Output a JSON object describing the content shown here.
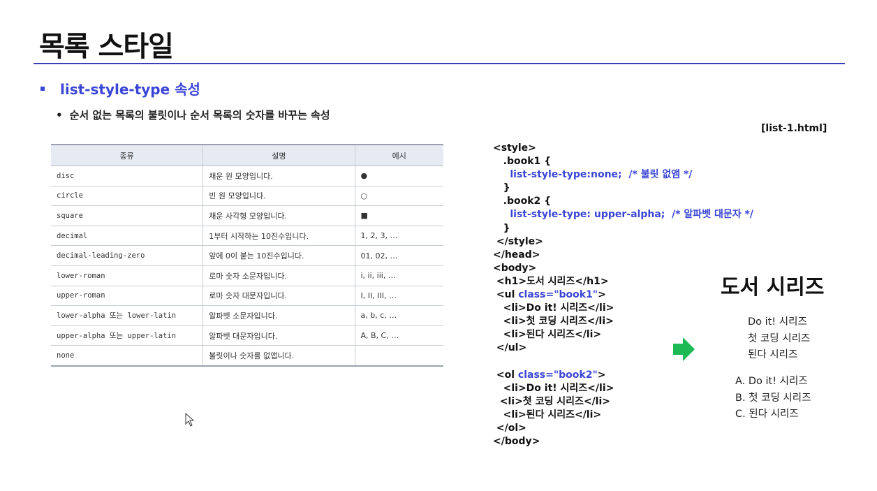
{
  "title": "목록 스타일",
  "heading": "list-style-type 속성",
  "subheading": "순서 없는 목록의 불릿이나 순서 목록의 숫자를 바꾸는 속성",
  "filename": "[list-1.html]",
  "table": {
    "headers": [
      "종류",
      "설명",
      "예시"
    ],
    "rows": [
      {
        "type": "disc",
        "desc": "채운 원 모양입니다.",
        "example": "●"
      },
      {
        "type": "circle",
        "desc": "빈 원 모양입니다.",
        "example": "○"
      },
      {
        "type": "square",
        "desc": "채운 사각형 모양입니다.",
        "example": "■"
      },
      {
        "type": "decimal",
        "desc": "1부터 시작하는 10진수입니다.",
        "example": "1, 2, 3, …"
      },
      {
        "type": "decimal-leading-zero",
        "desc": "앞에 0이 붙는 10진수입니다.",
        "example": "01, 02, …"
      },
      {
        "type": "lower-roman",
        "desc": "로마 숫자 소문자입니다.",
        "example": "i, ii, iii, …"
      },
      {
        "type": "upper-roman",
        "desc": "로마 숫자 대문자입니다.",
        "example": "I, II, III, …"
      },
      {
        "type": "lower-alpha 또는 lower-latin",
        "desc": "알파벳 소문자입니다.",
        "example": "a, b, c, …"
      },
      {
        "type": "upper-alpha 또는 upper-latin",
        "desc": "알파벳 대문자입니다.",
        "example": "A, B, C, …"
      },
      {
        "type": "none",
        "desc": "불릿이나 숫자를 없앱니다.",
        "example": ""
      }
    ]
  },
  "code": [
    {
      "indent": "",
      "parts": [
        {
          "t": "<style>",
          "c": ""
        }
      ]
    },
    {
      "indent": "   ",
      "parts": [
        {
          "t": ".book1 {",
          "c": ""
        }
      ]
    },
    {
      "indent": "     ",
      "parts": [
        {
          "t": "list-style-type:none;  /* 불릿 없앰 */",
          "c": "blue"
        }
      ]
    },
    {
      "indent": "   ",
      "parts": [
        {
          "t": "}",
          "c": ""
        }
      ]
    },
    {
      "indent": "   ",
      "parts": [
        {
          "t": ".book2 {",
          "c": ""
        }
      ]
    },
    {
      "indent": "     ",
      "parts": [
        {
          "t": "list-style-type: upper-alpha;  /* 알파벳 대문자 */",
          "c": "blue"
        }
      ]
    },
    {
      "indent": "   ",
      "parts": [
        {
          "t": "}",
          "c": ""
        }
      ]
    },
    {
      "indent": " ",
      "parts": [
        {
          "t": "</style>",
          "c": ""
        }
      ]
    },
    {
      "indent": "",
      "parts": [
        {
          "t": "</head>",
          "c": ""
        }
      ]
    },
    {
      "indent": "",
      "parts": [
        {
          "t": "<body>",
          "c": ""
        }
      ]
    },
    {
      "indent": " ",
      "parts": [
        {
          "t": "<h1>도서 시리즈</h1>",
          "c": ""
        }
      ]
    },
    {
      "indent": " ",
      "parts": [
        {
          "t": "<ul ",
          "c": ""
        },
        {
          "t": "class=\"book1\"",
          "c": "blue"
        },
        {
          "t": ">",
          "c": ""
        }
      ]
    },
    {
      "indent": "   ",
      "parts": [
        {
          "t": "<li>Do it! 시리즈</li>",
          "c": ""
        }
      ]
    },
    {
      "indent": "   ",
      "parts": [
        {
          "t": "<li>첫 코딩 시리즈</li>",
          "c": ""
        }
      ]
    },
    {
      "indent": "   ",
      "parts": [
        {
          "t": "<li>된다 시리즈</li>",
          "c": ""
        }
      ]
    },
    {
      "indent": " ",
      "parts": [
        {
          "t": "</ul>",
          "c": ""
        }
      ]
    },
    {
      "indent": "",
      "parts": [
        {
          "t": "",
          "c": ""
        }
      ]
    },
    {
      "indent": " ",
      "parts": [
        {
          "t": "<ol ",
          "c": ""
        },
        {
          "t": "class=\"book2\"",
          "c": "blue"
        },
        {
          "t": ">",
          "c": ""
        }
      ]
    },
    {
      "indent": "   ",
      "parts": [
        {
          "t": "<li>Do it! 시리즈</li>",
          "c": ""
        }
      ]
    },
    {
      "indent": "  ",
      "parts": [
        {
          "t": "<li>첫 코딩 시리즈</li>",
          "c": ""
        }
      ]
    },
    {
      "indent": "   ",
      "parts": [
        {
          "t": "<li>된다 시리즈</li>",
          "c": ""
        }
      ]
    },
    {
      "indent": " ",
      "parts": [
        {
          "t": "</ol>",
          "c": ""
        }
      ]
    },
    {
      "indent": "",
      "parts": [
        {
          "t": "</body>",
          "c": ""
        }
      ]
    }
  ],
  "preview": {
    "h1": "도서 시리즈",
    "ul_items": [
      "Do it! 시리즈",
      "첫 코딩 시리즈",
      "된다 시리즈"
    ],
    "ol_items": [
      "A. Do it! 시리즈",
      "B. 첫 코딩 시리즈",
      "C. 된다 시리즈"
    ]
  },
  "colors": {
    "accent": "#3a45d6",
    "arrow": "#1db954"
  }
}
